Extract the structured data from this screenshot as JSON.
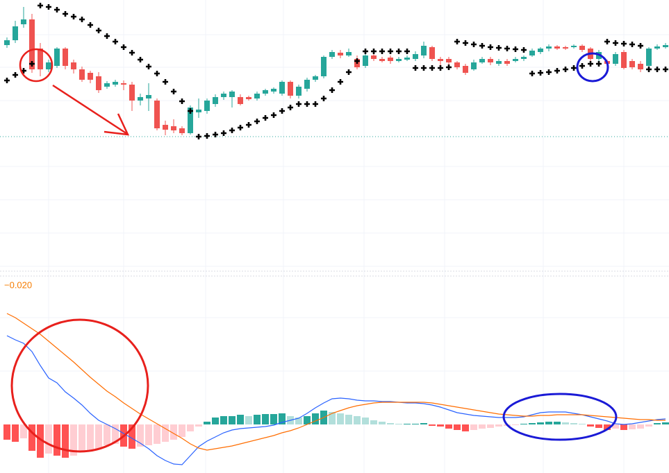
{
  "chart_data": [
    {
      "type": "candlestick",
      "open": [
        335,
        342,
        365,
        372,
        330,
        300,
        305,
        330,
        310,
        300,
        295,
        290,
        275,
        278,
        280,
        278,
        255,
        258,
        255,
        220,
        218,
        215,
        208,
        238,
        240,
        250,
        260,
        260,
        260,
        260,
        258,
        265,
        268,
        265,
        282,
        262,
        272,
        285,
        290,
        318,
        324,
        320,
        315,
        305,
        320,
        315,
        317,
        312,
        314,
        315,
        320,
        332,
        315,
        315,
        310,
        305,
        300,
        310,
        315,
        308,
        312,
        312,
        315,
        320,
        325,
        330,
        333,
        332,
        332,
        334,
        330,
        315,
        312,
        308,
        325,
        312,
        308,
        305,
        330,
        332
      ],
      "high": [
        346,
        370,
        390,
        380,
        338,
        314,
        332,
        332,
        314,
        304,
        298,
        296,
        283,
        285,
        284,
        282,
        265,
        280,
        258,
        226,
        228,
        218,
        248,
        258,
        258,
        264,
        268,
        270,
        264,
        262,
        268,
        272,
        274,
        284,
        284,
        278,
        288,
        292,
        320,
        328,
        328,
        330,
        320,
        324,
        324,
        318,
        320,
        318,
        320,
        326,
        340,
        334,
        318,
        318,
        312,
        308,
        314,
        318,
        318,
        315,
        315,
        318,
        320,
        330,
        332,
        336,
        335,
        334,
        336,
        336,
        332,
        328,
        314,
        325,
        328,
        315,
        312,
        332,
        336,
        338
      ],
      "low": [
        331,
        338,
        360,
        295,
        290,
        296,
        302,
        300,
        294,
        282,
        280,
        266,
        272,
        275,
        270,
        240,
        248,
        240,
        212,
        205,
        208,
        205,
        206,
        230,
        236,
        246,
        256,
        245,
        248,
        255,
        255,
        262,
        265,
        262,
        258,
        258,
        268,
        282,
        287,
        315,
        316,
        318,
        300,
        302,
        312,
        310,
        308,
        310,
        312,
        312,
        316,
        312,
        305,
        306,
        300,
        292,
        298,
        308,
        306,
        305,
        305,
        310,
        312,
        318,
        322,
        326,
        328,
        328,
        330,
        325,
        312,
        312,
        305,
        305,
        300,
        300,
        296,
        302,
        328,
        330
      ],
      "close": [
        342,
        362,
        372,
        300,
        300,
        310,
        330,
        305,
        300,
        285,
        285,
        270,
        280,
        282,
        278,
        255,
        260,
        263,
        215,
        213,
        212,
        208,
        245,
        242,
        255,
        260,
        265,
        268,
        250,
        257,
        265,
        270,
        272,
        282,
        262,
        275,
        285,
        290,
        318,
        325,
        320,
        325,
        303,
        320,
        315,
        312,
        312,
        315,
        317,
        322,
        334,
        315,
        312,
        310,
        303,
        295,
        310,
        315,
        310,
        312,
        308,
        315,
        318,
        327,
        330,
        333,
        330,
        330,
        334,
        328,
        315,
        325,
        308,
        322,
        302,
        303,
        300,
        330,
        333,
        335
      ],
      "up_color": "#26a69a",
      "down_color": "#ef5350",
      "sar": [
        284,
        292,
        298,
        308,
        392,
        390,
        386,
        380,
        376,
        372,
        364,
        356,
        348,
        340,
        332,
        324,
        314,
        304,
        294,
        282,
        268,
        254,
        240,
        203,
        204,
        206,
        208,
        212,
        216,
        220,
        225,
        230,
        234,
        240,
        245,
        250,
        250,
        250,
        258,
        270,
        282,
        296,
        312,
        326,
        326,
        326,
        326,
        326,
        326,
        302,
        302,
        302,
        302,
        303,
        340,
        338,
        336,
        334,
        332,
        331,
        330,
        329,
        328,
        294,
        295,
        296,
        298,
        300,
        302,
        305,
        308,
        308,
        340,
        338,
        337,
        336,
        334,
        300,
        300,
        300
      ],
      "sar_color": "#000000",
      "price_line": 203,
      "price_line_color": "#26a69a",
      "ylim": [
        10,
        400
      ]
    },
    {
      "type": "macd",
      "label": "−0.020",
      "label_color": "#f57c00",
      "macd": [
        128,
        122,
        117,
        105,
        85,
        67,
        60,
        47,
        38,
        28,
        16,
        6,
        0,
        -6,
        -13,
        -20,
        -27,
        -35,
        -45,
        -52,
        -57,
        -58,
        -45,
        -32,
        -24,
        -18,
        -12,
        -8,
        -6,
        -5,
        -4,
        -3,
        -1,
        3,
        6,
        9,
        16,
        24,
        31,
        37,
        38,
        37,
        35,
        34,
        34,
        33,
        33,
        32,
        31,
        31,
        30,
        28,
        25,
        21,
        17,
        15,
        13,
        12,
        11,
        10,
        10,
        10,
        11,
        14,
        17,
        18,
        18,
        18,
        16,
        14,
        11,
        8,
        5,
        1,
        0,
        1,
        3,
        5,
        7,
        8
      ],
      "macd_color": "#2962ff",
      "signal": [
        160,
        154,
        146,
        138,
        130,
        120,
        110,
        100,
        90,
        79,
        68,
        58,
        48,
        40,
        31,
        23,
        15,
        8,
        1,
        -6,
        -13,
        -20,
        -28,
        -34,
        -37,
        -35,
        -33,
        -31,
        -28,
        -25,
        -22,
        -19,
        -16,
        -12,
        -9,
        -5,
        0,
        5,
        10,
        16,
        20,
        24,
        27,
        29,
        31,
        32,
        32,
        32,
        32,
        32,
        32,
        31,
        29,
        27,
        25,
        23,
        21,
        19,
        17,
        15,
        14,
        13,
        12,
        12,
        13,
        13,
        14,
        14,
        14,
        14,
        13,
        12,
        11,
        10,
        9,
        8,
        7,
        7,
        6,
        6
      ],
      "signal_color": "#ff6d00",
      "histogram": [
        -22,
        -25,
        -20,
        -38,
        -48,
        -42,
        -45,
        -48,
        -45,
        -40,
        -38,
        -35,
        -30,
        -28,
        -32,
        -35,
        -32,
        -30,
        -28,
        -25,
        -22,
        -18,
        -10,
        -3,
        4,
        10,
        12,
        12,
        14,
        12,
        14,
        15,
        15,
        16,
        12,
        10,
        12,
        16,
        20,
        18,
        16,
        14,
        12,
        10,
        6,
        4,
        2,
        1,
        1,
        1,
        2,
        -2,
        -3,
        -6,
        -8,
        -10,
        -8,
        -6,
        -5,
        -3,
        -2,
        -1,
        1,
        2,
        3,
        4,
        4,
        3,
        2,
        1,
        -3,
        -5,
        -8,
        -6,
        -8,
        -7,
        -6,
        -3,
        2,
        3
      ],
      "histogram_colors": {
        "rising_positive": "#26a69a",
        "falling_positive": "#b2dfdb",
        "falling_negative": "#ff5252",
        "rising_negative": "#ffcdd2"
      },
      "ylim": [
        -70,
        212
      ]
    }
  ]
}
